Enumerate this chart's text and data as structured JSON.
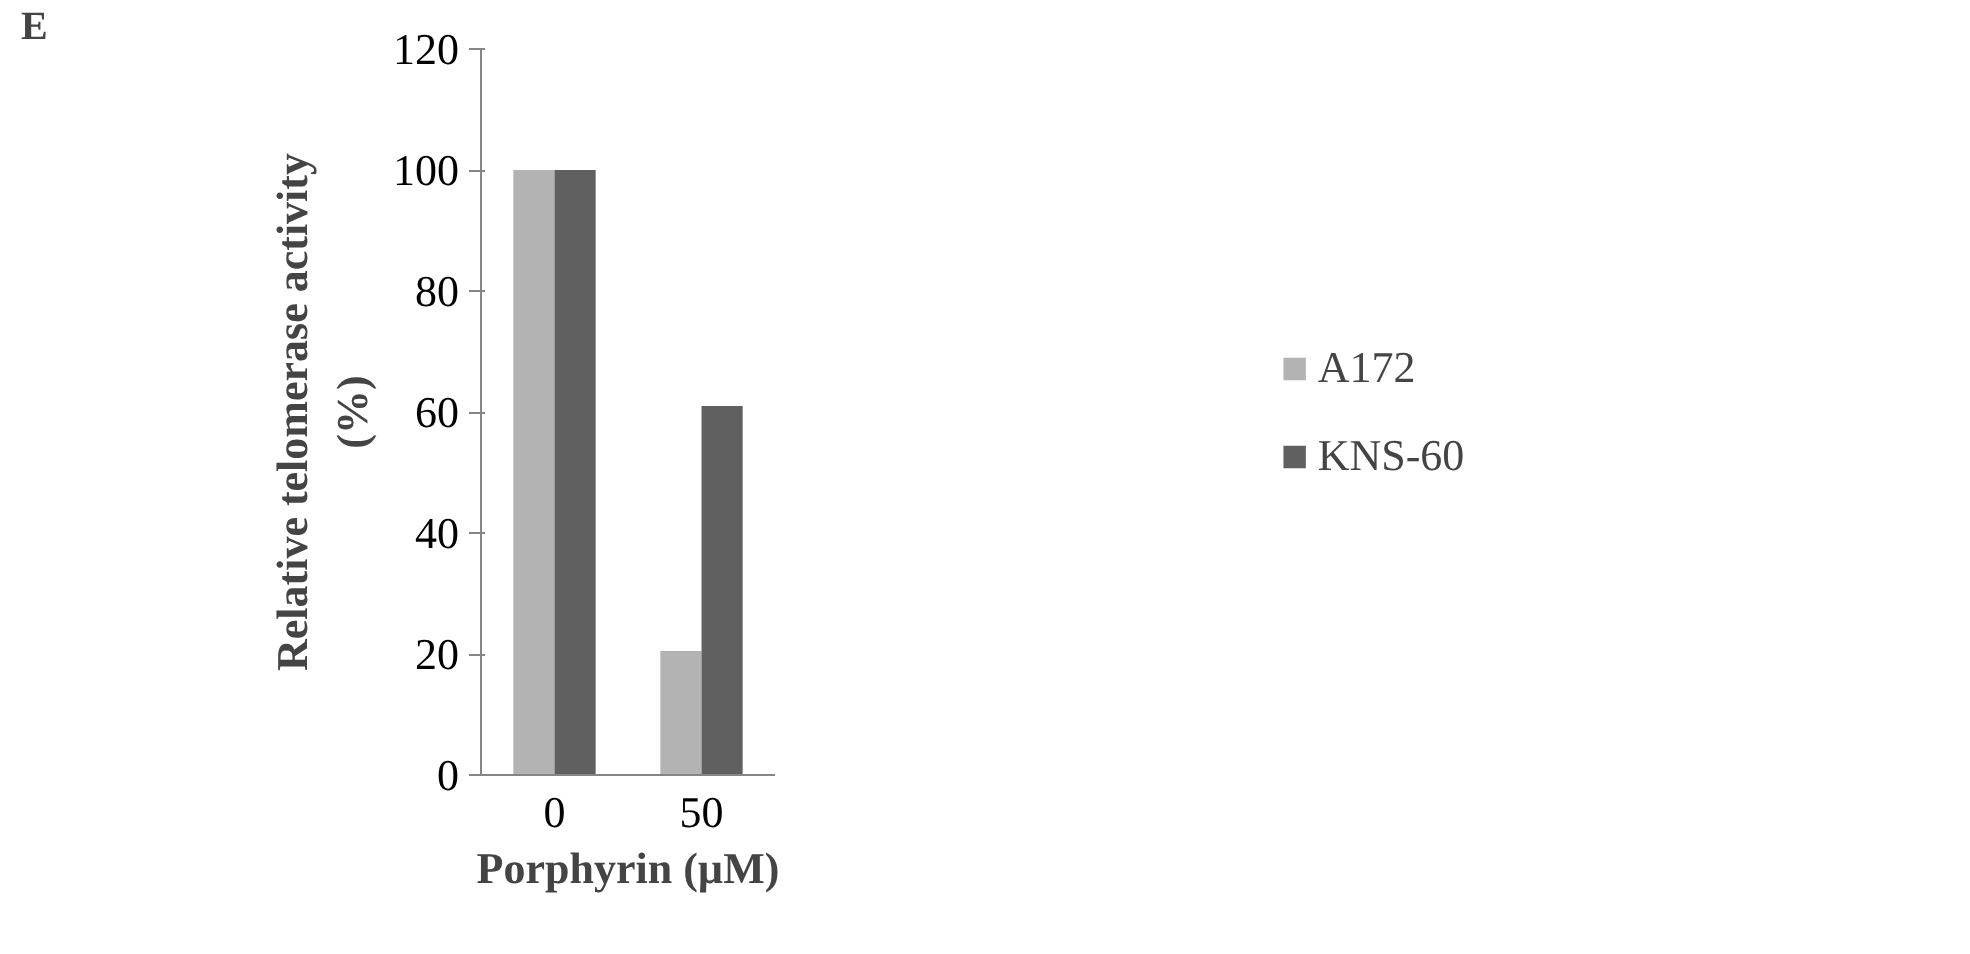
{
  "chart_data": {
    "type": "bar",
    "categories": [
      "0",
      "50"
    ],
    "xlabel": "Porphyrin (µM)",
    "ylabel": "Relative telomerase activity\n(%)",
    "ylim": [
      0,
      120
    ],
    "yticks": [
      0,
      20,
      40,
      60,
      80,
      100,
      120
    ],
    "grid": false,
    "legend": "right",
    "annotations": [
      "E"
    ],
    "series": [
      {
        "name": "A172",
        "color": "#b3b3b3",
        "values": [
          100,
          20.5
        ]
      },
      {
        "name": "KNS-60",
        "color": "#606060",
        "values": [
          100,
          61
        ]
      }
    ]
  }
}
